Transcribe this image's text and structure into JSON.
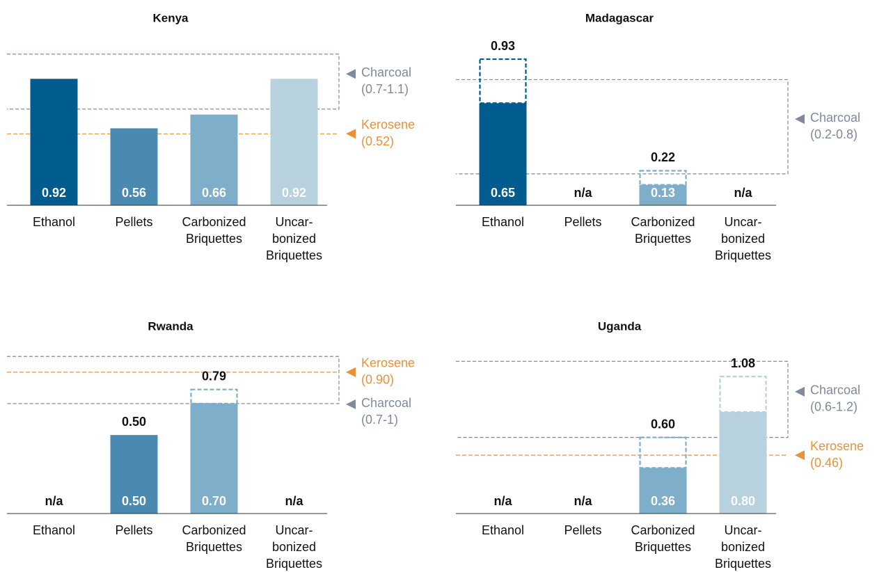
{
  "chart_data": [
    {
      "type": "bar",
      "title": "Kenya",
      "categories": [
        [
          "Ethanol"
        ],
        [
          "Pellets"
        ],
        [
          "Carbonized",
          "Briquettes"
        ],
        [
          "Uncar-",
          "bonized",
          "Briquettes"
        ]
      ],
      "colors": [
        "#005b8e",
        "#4a8ab0",
        "#7eaec9",
        "#b7d1de"
      ],
      "values": [
        0.92,
        0.56,
        0.66,
        0.92
      ],
      "value_labels": [
        "0.92",
        "0.56",
        "0.66",
        "0.92"
      ],
      "high_values": [
        null,
        null,
        null,
        null
      ],
      "high_value_labels": [
        null,
        null,
        null,
        null
      ],
      "reference_bands": [
        {
          "name": "Charcoal",
          "label": "(0.7-1.1)",
          "range": [
            0.7,
            1.1
          ],
          "color": "#7f8a9a"
        }
      ],
      "reference_lines": [
        {
          "name": "Kerosene",
          "label": "(0.52)",
          "value": 0.52,
          "color": "#e8923a"
        }
      ],
      "ylim": [
        0,
        1.2
      ]
    },
    {
      "type": "bar",
      "title": "Madagascar",
      "categories": [
        [
          "Ethanol"
        ],
        [
          "Pellets"
        ],
        [
          "Carbonized",
          "Briquettes"
        ],
        [
          "Uncar-",
          "bonized",
          "Briquettes"
        ]
      ],
      "colors": [
        "#005b8e",
        "#4a8ab0",
        "#7eaec9",
        "#b7d1de"
      ],
      "values": [
        0.65,
        null,
        0.13,
        null
      ],
      "value_labels": [
        "0.65",
        "n/a",
        "0.13",
        "n/a"
      ],
      "high_values": [
        0.93,
        null,
        0.22,
        null
      ],
      "high_value_labels": [
        "0.93",
        null,
        "0.22",
        null
      ],
      "reference_bands": [
        {
          "name": "Charcoal",
          "label": "(0.2-0.8)",
          "range": [
            0.2,
            0.8
          ],
          "color": "#7f8a9a"
        }
      ],
      "reference_lines": [],
      "ylim": [
        0,
        1.05
      ]
    },
    {
      "type": "bar",
      "title": "Rwanda",
      "categories": [
        [
          "Ethanol"
        ],
        [
          "Pellets"
        ],
        [
          "Carbonized",
          "Briquettes"
        ],
        [
          "Uncar-",
          "bonized",
          "Briquettes"
        ]
      ],
      "colors": [
        "#005b8e",
        "#4a8ab0",
        "#7eaec9",
        "#b7d1de"
      ],
      "values": [
        null,
        0.5,
        0.7,
        null
      ],
      "value_labels": [
        "n/a",
        "0.50",
        "0.70",
        "n/a"
      ],
      "high_values": [
        null,
        0.5,
        0.79,
        null
      ],
      "high_value_labels": [
        null,
        "0.50",
        "0.79",
        null
      ],
      "reference_bands": [
        {
          "name": "Charcoal",
          "label": "(0.7-1)",
          "range": [
            0.7,
            1.0
          ],
          "color": "#7f8a9a"
        }
      ],
      "reference_lines": [
        {
          "name": "Kerosene",
          "label": "(0.90)",
          "value": 0.9,
          "color": "#e8923a"
        }
      ],
      "ylim": [
        0,
        1.05
      ]
    },
    {
      "type": "bar",
      "title": "Uganda",
      "categories": [
        [
          "Ethanol"
        ],
        [
          "Pellets"
        ],
        [
          "Carbonized",
          "Briquettes"
        ],
        [
          "Uncar-",
          "bonized",
          "Briquettes"
        ]
      ],
      "colors": [
        "#005b8e",
        "#4a8ab0",
        "#7eaec9",
        "#b7d1de"
      ],
      "values": [
        null,
        null,
        0.36,
        0.8
      ],
      "value_labels": [
        "n/a",
        "n/a",
        "0.36",
        "0.80"
      ],
      "high_values": [
        null,
        null,
        0.6,
        1.08
      ],
      "high_value_labels": [
        null,
        null,
        "0.60",
        "1.08"
      ],
      "reference_bands": [
        {
          "name": "Charcoal",
          "label": "(0.6-1.2)",
          "range": [
            0.6,
            1.2
          ],
          "color": "#7f8a9a"
        }
      ],
      "reference_lines": [
        {
          "name": "Kerosene",
          "label": "(0.46)",
          "value": 0.46,
          "color": "#e8923a"
        }
      ],
      "ylim": [
        0,
        1.3
      ]
    }
  ]
}
